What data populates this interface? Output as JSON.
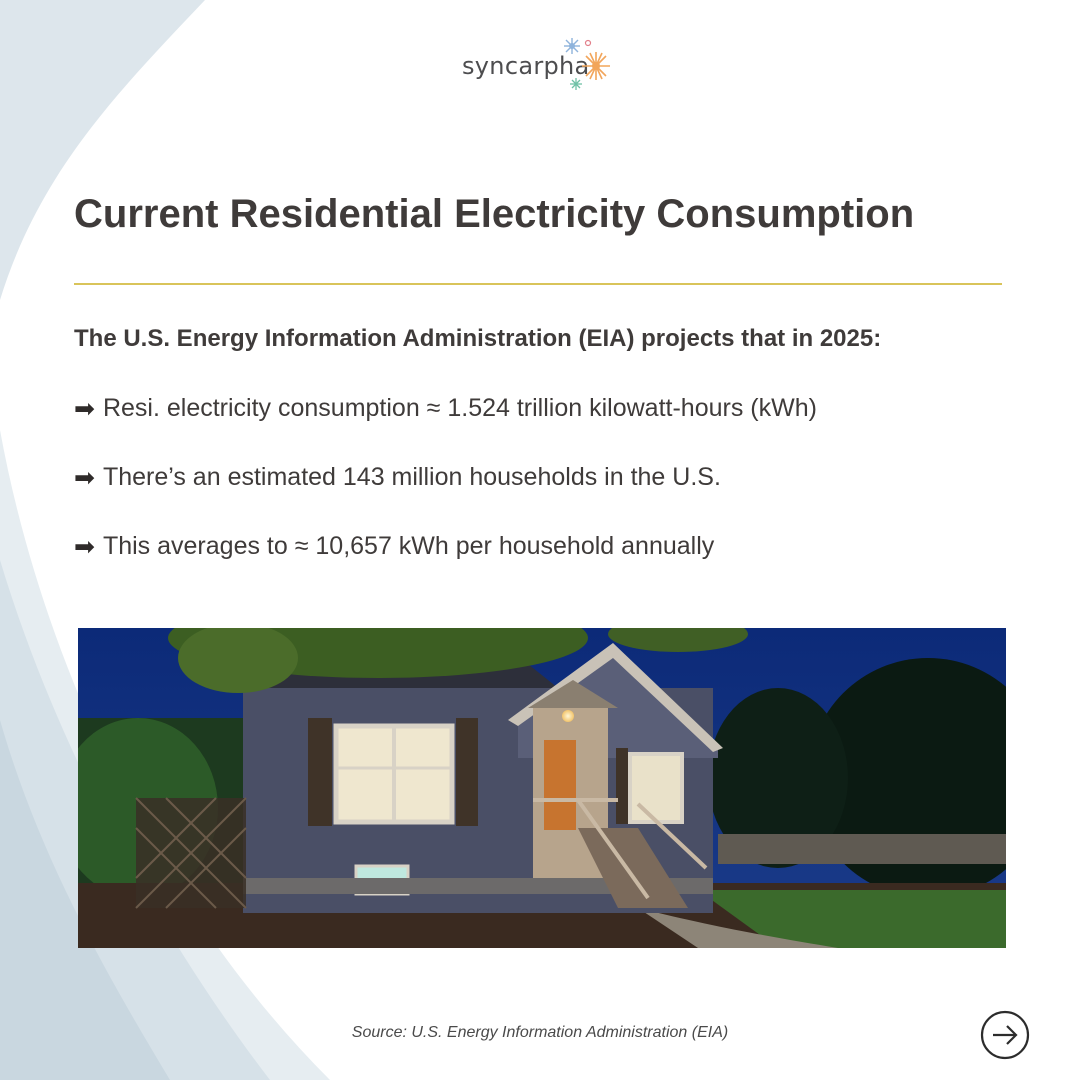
{
  "brand": {
    "name": "syncarpha",
    "logo_icon": "starburst-flower-icon"
  },
  "slide": {
    "title": "Current Residential Electricity Consumption",
    "intro": "The U.S. Energy Information Administration (EIA) projects that in 2025:",
    "bullets": [
      {
        "icon": "➡",
        "text": "Resi. electricity consumption ≈ 1.524 trillion kilowatt-hours (kWh)"
      },
      {
        "icon": "➡",
        "text": "There’s an estimated 143 million households in the U.S."
      },
      {
        "icon": "➡",
        "text": "This averages to ≈ 10,657 kWh per household annually"
      }
    ],
    "source": "Source: U.S. Energy Information Administration (EIA)"
  },
  "navigation": {
    "next_icon": "arrow-right-circle-icon"
  },
  "colors": {
    "title": "#3f3b3a",
    "rule": "#d9c45a",
    "text": "#3f3b3a",
    "sky": "#0f2f6e"
  }
}
